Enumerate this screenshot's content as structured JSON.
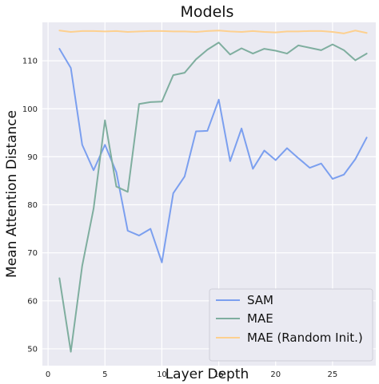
{
  "chart_data": {
    "type": "line",
    "title": "Models",
    "xlabel": "Layer Depth",
    "ylabel": "Mean Attention Distance",
    "xlim": [
      -0.5,
      28.8
    ],
    "ylim": [
      46.5,
      118
    ],
    "xticks": [
      0,
      5,
      10,
      15,
      20,
      25
    ],
    "yticks": [
      50,
      60,
      70,
      80,
      90,
      100,
      110
    ],
    "grid": true,
    "legend_position": "bottom-right",
    "x": [
      1,
      2,
      3,
      4,
      5,
      6,
      7,
      8,
      9,
      10,
      11,
      12,
      13,
      14,
      15,
      16,
      17,
      18,
      19,
      20,
      21,
      22,
      23,
      24,
      25,
      26,
      27,
      28
    ],
    "series": [
      {
        "name": "SAM",
        "color": "#7b9fef",
        "values": [
          112.5,
          108.5,
          92.5,
          87.2,
          92.5,
          86.8,
          74.6,
          73.6,
          75.0,
          68.0,
          82.4,
          85.9,
          95.3,
          95.4,
          101.9,
          89.1,
          95.9,
          87.5,
          91.3,
          89.3,
          91.8,
          89.7,
          87.7,
          88.6,
          85.4,
          86.3,
          89.5,
          94.0
        ]
      },
      {
        "name": "MAE",
        "color": "#7fae9f",
        "values": [
          64.7,
          49.4,
          67.3,
          79.2,
          97.6,
          83.8,
          82.7,
          101.0,
          101.4,
          101.5,
          107.0,
          107.5,
          110.3,
          112.3,
          113.8,
          111.3,
          112.6,
          111.5,
          112.5,
          112.1,
          111.5,
          113.2,
          112.7,
          112.2,
          113.4,
          112.2,
          110.1,
          111.5
        ]
      },
      {
        "name": "MAE (Random Init.)",
        "color": "#fdd08f",
        "values": [
          116.3,
          116.0,
          116.2,
          116.2,
          116.1,
          116.2,
          116.0,
          116.1,
          116.2,
          116.2,
          116.1,
          116.1,
          116.0,
          116.2,
          116.3,
          116.1,
          116.0,
          116.2,
          116.0,
          115.9,
          116.1,
          116.1,
          116.2,
          116.2,
          116.0,
          115.7,
          116.3,
          115.8
        ]
      }
    ]
  }
}
